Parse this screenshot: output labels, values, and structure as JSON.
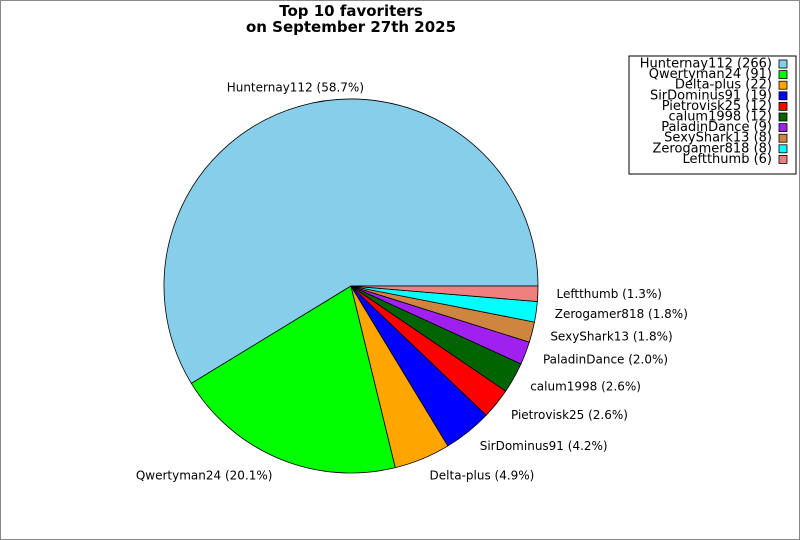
{
  "chart_data": {
    "type": "pie",
    "title": "Top 10 favoriters\non September 27th 2025",
    "categories": [
      "Hunternay112 (266)",
      "Qwertyman24 (91)",
      "Delta-plus (22)",
      "SirDominus91 (19)",
      "Pietrovisk25 (12)",
      "calum1998 (12)",
      "PaladinDance (9)",
      "SexyShark13 (8)",
      "Zerogamer818 (8)",
      "Leftthumb (6)"
    ],
    "values": [
      266,
      91,
      22,
      19,
      12,
      12,
      9,
      8,
      8,
      6
    ],
    "value_labels": [
      "Hunternay112 (58.7%)",
      "Qwertyman24 (20.1%)",
      "Delta-plus (4.9%)",
      "SirDominus91 (4.2%)",
      "Pietrovisk25 (2.6%)",
      "calum1998 (2.6%)",
      "PaladinDance (2.0%)",
      "SexyShark13 (1.8%)",
      "Zerogamer818 (1.8%)",
      "Leftthumb (1.3%)"
    ],
    "colors": [
      "#87ceeb",
      "#00ff00",
      "#ffa500",
      "#0000ff",
      "#ff0000",
      "#006400",
      "#a020f0",
      "#cd853f",
      "#00ffff",
      "#f08080"
    ],
    "legend": "upper right"
  }
}
